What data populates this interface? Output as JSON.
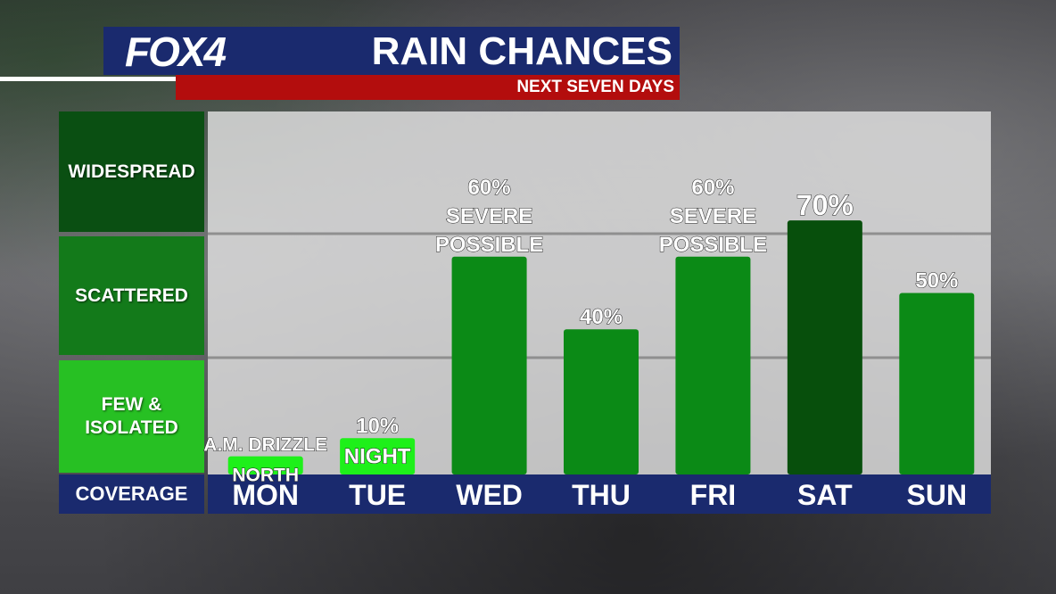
{
  "header": {
    "logo": "FOX4",
    "title": "RAIN CHANCES",
    "subtitle": "NEXT SEVEN DAYS"
  },
  "coverage": {
    "axis_label": "COVERAGE",
    "levels": [
      "WIDESPREAD",
      "SCATTERED",
      "FEW & ISOLATED"
    ]
  },
  "colors": {
    "brand_blue": "#1a2a6e",
    "brand_red": "#b30d0d",
    "widespread": "#0a4f12",
    "scattered": "#137a1a",
    "few": "#27c023",
    "bar_bright": "#1ef01a",
    "bar_mid": "#0b8a16",
    "bar_dark": "#074f0c"
  },
  "chart_data": {
    "type": "bar",
    "title": "RAIN CHANCES",
    "subtitle": "NEXT SEVEN DAYS",
    "categories": [
      "MON",
      "TUE",
      "WED",
      "THU",
      "FRI",
      "SAT",
      "SUN"
    ],
    "values": [
      5,
      10,
      60,
      40,
      60,
      70,
      50
    ],
    "labels": [
      [
        "A.M. DRIZZLE",
        "NORTH"
      ],
      [
        "10%",
        "NIGHT"
      ],
      [
        "60%",
        "SEVERE",
        "POSSIBLE"
      ],
      [
        "40%"
      ],
      [
        "60%",
        "SEVERE",
        "POSSIBLE"
      ],
      [
        "70%"
      ],
      [
        "50%"
      ]
    ],
    "bar_colors": [
      "bright",
      "bright",
      "mid",
      "mid",
      "mid",
      "dark",
      "mid"
    ],
    "ylabel": "COVERAGE",
    "y_categories": [
      "FEW & ISOLATED",
      "SCATTERED",
      "WIDESPREAD"
    ],
    "ylim": [
      0,
      100
    ],
    "grid": true
  }
}
